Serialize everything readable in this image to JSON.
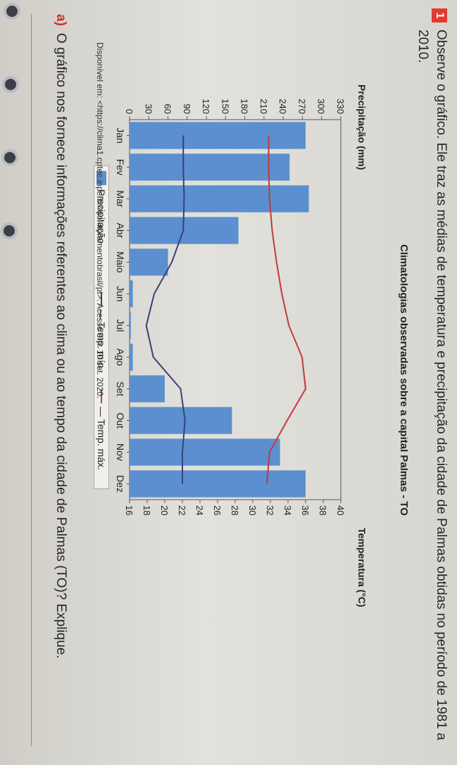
{
  "question": {
    "number": "1",
    "text": "Observe o gráfico. Ele traz as médias de temperatura e precipitação da cidade de Palmas obtidas no período de 1981 a 2010."
  },
  "chart_data": {
    "type": "bar",
    "title": "Climatologias observadas sobre a capital Palmas - TO",
    "y_left_label": "Precipitação (mm)",
    "y_right_label": "Temperatura (°C)",
    "categories": [
      "Jan",
      "Fev",
      "Mar",
      "Abr",
      "Maio",
      "Jun",
      "Jul",
      "Ago",
      "Set",
      "Out",
      "Nov",
      "Dez"
    ],
    "y_left_ticks": [
      "0",
      "30",
      "60",
      "90",
      "120",
      "150",
      "180",
      "210",
      "240",
      "270",
      "300",
      "330"
    ],
    "y_right_ticks": [
      "16",
      "18",
      "20",
      "22",
      "24",
      "26",
      "28",
      "30",
      "32",
      "34",
      "36",
      "38",
      "40"
    ],
    "y_left_lim": [
      0,
      330
    ],
    "y_right_lim": [
      16,
      40
    ],
    "series": [
      {
        "name": "Precipitação",
        "type": "bar",
        "axis": "left",
        "values": [
          275,
          250,
          280,
          170,
          60,
          5,
          2,
          5,
          55,
          160,
          235,
          275
        ]
      },
      {
        "name": "Temp. mín.",
        "type": "line",
        "axis": "right",
        "values": [
          22.1,
          22.1,
          22.2,
          22.1,
          20.8,
          18.8,
          17.9,
          18.7,
          21.8,
          22.3,
          22.0,
          22.0
        ]
      },
      {
        "name": "Temp. máx.",
        "type": "line",
        "axis": "right",
        "values": [
          31.8,
          31.8,
          31.9,
          32.2,
          32.7,
          33.3,
          34.1,
          35.6,
          36.0,
          33.9,
          31.9,
          31.6
        ]
      }
    ],
    "legend": [
      "Precipitação",
      "— Temp. mín.",
      "— Temp. máx."
    ],
    "colors": {
      "bar": "#5b8fcf",
      "min": "#3b3f7a",
      "max": "#c23a3a"
    }
  },
  "source": "Disponível em: <https://clima1.cptec.inpe.br/monitoramentobrasil/pt>. Acesso em: 10 set. 2020.",
  "item_a": {
    "letter": "a)",
    "text": "O gráfico nos fornece informações referentes ao clima ou ao tempo da cidade de Palmas (TO)? Explique."
  }
}
